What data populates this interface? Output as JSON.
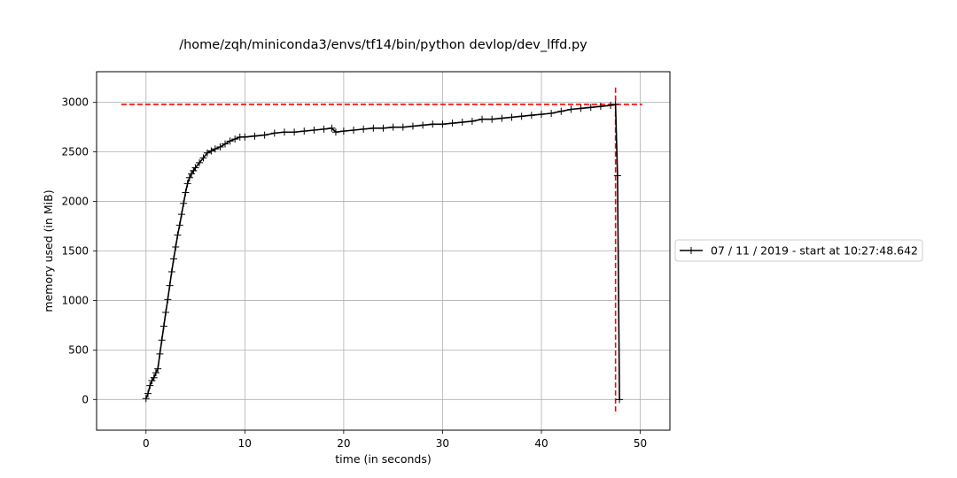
{
  "chart_data": {
    "type": "line",
    "title": "/home/zqh/miniconda3/envs/tf14/bin/python devlop/dev_lffd.py",
    "xlabel": "time (in seconds)",
    "ylabel": "memory used (in MiB)",
    "xlim": [
      -5,
      53
    ],
    "ylim": [
      -310,
      3310
    ],
    "xticks": [
      0,
      10,
      20,
      30,
      40,
      50
    ],
    "yticks": [
      0,
      500,
      1000,
      1500,
      2000,
      2500,
      3000
    ],
    "grid": true,
    "legend_position": "outside-right",
    "series": [
      {
        "name": "07 / 11 / 2019 - start at 10:27:48.642",
        "color": "#000000",
        "marker": "+",
        "x": [
          0,
          0.2,
          0.4,
          0.6,
          0.8,
          1.0,
          1.2,
          1.4,
          1.6,
          1.8,
          2.0,
          2.2,
          2.4,
          2.6,
          2.8,
          3.0,
          3.2,
          3.4,
          3.6,
          3.8,
          4.0,
          4.2,
          4.4,
          4.6,
          4.8,
          5.0,
          5.4,
          5.8,
          6.2,
          6.6,
          7.0,
          7.5,
          8.0,
          8.5,
          9.0,
          9.5,
          10.0,
          11.0,
          12.0,
          13.0,
          14.0,
          15.0,
          16.0,
          17.0,
          18.0,
          18.8,
          19.2,
          20.0,
          21.0,
          22.0,
          23.0,
          24.0,
          25.0,
          26.0,
          27.0,
          28.0,
          29.0,
          30.0,
          31.0,
          32.0,
          33.0,
          34.0,
          35.0,
          36.0,
          37.0,
          38.0,
          39.0,
          40.0,
          41.0,
          42.0,
          43.0,
          44.0,
          45.0,
          46.0,
          47.0,
          47.5,
          47.7,
          47.9
        ],
        "y": [
          10,
          60,
          140,
          190,
          220,
          270,
          310,
          460,
          600,
          740,
          880,
          1010,
          1150,
          1290,
          1420,
          1540,
          1660,
          1760,
          1870,
          1980,
          2090,
          2180,
          2240,
          2280,
          2310,
          2340,
          2390,
          2440,
          2490,
          2510,
          2530,
          2550,
          2580,
          2610,
          2630,
          2650,
          2650,
          2660,
          2670,
          2690,
          2700,
          2700,
          2710,
          2720,
          2730,
          2740,
          2700,
          2710,
          2720,
          2730,
          2740,
          2740,
          2750,
          2750,
          2760,
          2770,
          2780,
          2780,
          2790,
          2800,
          2810,
          2830,
          2830,
          2840,
          2850,
          2860,
          2870,
          2880,
          2890,
          2910,
          2930,
          2940,
          2950,
          2960,
          2970,
          2980,
          2260,
          0
        ]
      }
    ],
    "reference_lines": {
      "max_memory": 2980,
      "max_memory_time": 47.5,
      "color": "#ff0000"
    }
  }
}
